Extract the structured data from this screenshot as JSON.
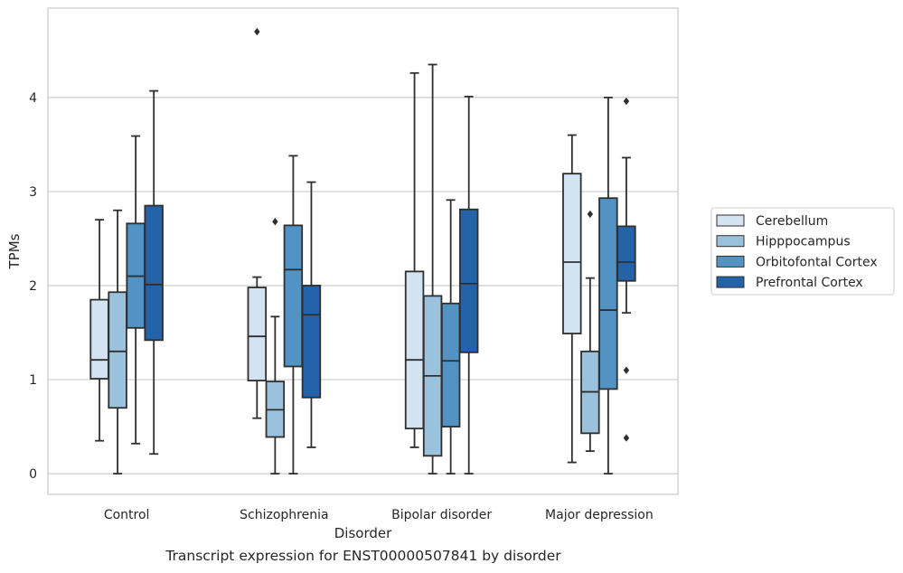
{
  "chart_data": {
    "type": "box",
    "title": "",
    "xlabel": "Disorder",
    "ylabel": "TPMs",
    "ylim": [
      -0.22,
      4.95
    ],
    "yticks": [
      0,
      1,
      2,
      3,
      4
    ],
    "grid": "horizontal",
    "legend_position": "outside-right",
    "categories": [
      "Control",
      "Schizophrenia",
      "Bipolar disorder",
      "Major depression"
    ],
    "series": [
      {
        "name": "Cerebellum",
        "color": "#d3e3f2",
        "boxes": [
          {
            "whislo": 0.35,
            "q1": 1.01,
            "med": 1.21,
            "q3": 1.85,
            "whishi": 2.7,
            "fliers": []
          },
          {
            "whislo": 0.59,
            "q1": 0.99,
            "med": 1.46,
            "q3": 1.98,
            "whishi": 2.09,
            "fliers": [
              4.7
            ]
          },
          {
            "whislo": 0.28,
            "q1": 0.48,
            "med": 1.21,
            "q3": 2.15,
            "whishi": 4.26,
            "fliers": []
          },
          {
            "whislo": 0.12,
            "q1": 1.49,
            "med": 2.25,
            "q3": 3.19,
            "whishi": 3.6,
            "fliers": []
          }
        ]
      },
      {
        "name": "Hipppocampus",
        "color": "#9ac2dc",
        "boxes": [
          {
            "whislo": 0.0,
            "q1": 0.7,
            "med": 1.3,
            "q3": 1.93,
            "whishi": 2.8,
            "fliers": []
          },
          {
            "whislo": 0.0,
            "q1": 0.39,
            "med": 0.68,
            "q3": 0.98,
            "whishi": 1.67,
            "fliers": [
              2.68
            ]
          },
          {
            "whislo": 0.0,
            "q1": 0.19,
            "med": 1.04,
            "q3": 1.89,
            "whishi": 4.35,
            "fliers": []
          },
          {
            "whislo": 0.24,
            "q1": 0.43,
            "med": 0.87,
            "q3": 1.3,
            "whishi": 2.08,
            "fliers": [
              2.76
            ]
          }
        ]
      },
      {
        "name": "Orbitofontal Cortex",
        "color": "#5293c3",
        "boxes": [
          {
            "whislo": 0.32,
            "q1": 1.55,
            "med": 2.1,
            "q3": 2.66,
            "whishi": 3.59,
            "fliers": []
          },
          {
            "whislo": 0.0,
            "q1": 1.14,
            "med": 2.17,
            "q3": 2.64,
            "whishi": 3.38,
            "fliers": []
          },
          {
            "whislo": 0.0,
            "q1": 0.5,
            "med": 1.2,
            "q3": 1.81,
            "whishi": 2.91,
            "fliers": []
          },
          {
            "whislo": 0.0,
            "q1": 0.9,
            "med": 1.74,
            "q3": 2.93,
            "whishi": 4.0,
            "fliers": []
          }
        ]
      },
      {
        "name": "Prefrontal Cortex",
        "color": "#2563a8",
        "boxes": [
          {
            "whislo": 0.21,
            "q1": 1.42,
            "med": 2.01,
            "q3": 2.85,
            "whishi": 4.07,
            "fliers": []
          },
          {
            "whislo": 0.28,
            "q1": 0.81,
            "med": 1.69,
            "q3": 2.0,
            "whishi": 3.1,
            "fliers": []
          },
          {
            "whislo": 0.0,
            "q1": 1.29,
            "med": 2.02,
            "q3": 2.81,
            "whishi": 4.01,
            "fliers": []
          },
          {
            "whislo": 1.71,
            "q1": 2.05,
            "med": 2.25,
            "q3": 2.63,
            "whishi": 3.36,
            "fliers": [
              3.96,
              1.1,
              0.38
            ]
          }
        ]
      }
    ]
  },
  "caption": "Transcript expression for ENST00000507841 by disorder"
}
